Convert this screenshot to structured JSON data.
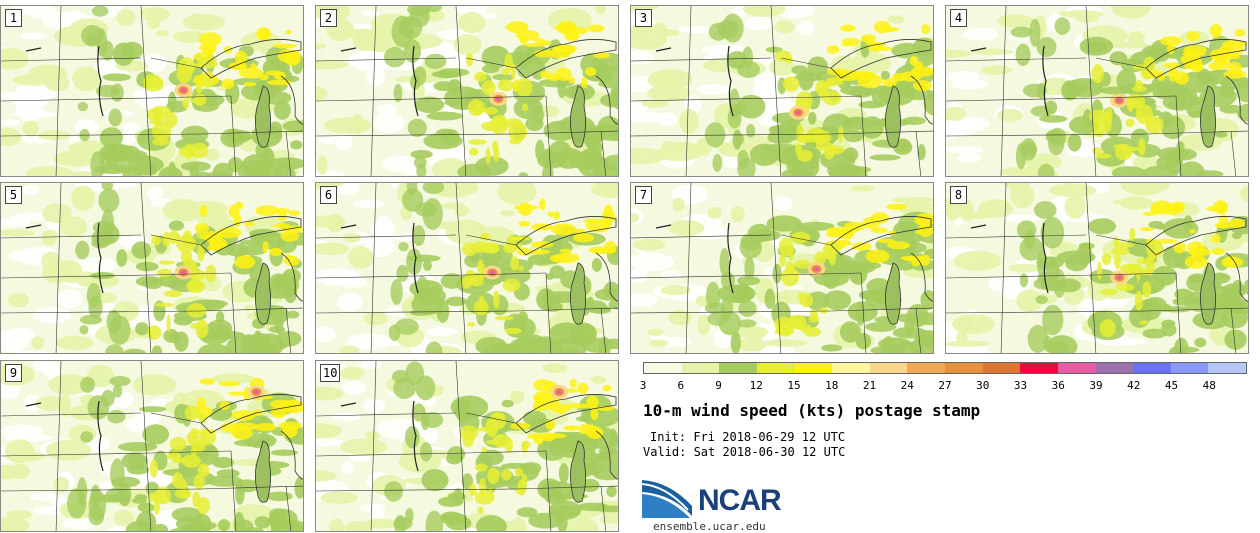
{
  "panels": [
    {
      "label": "1",
      "hot": [
        0.6,
        0.49
      ]
    },
    {
      "label": "2",
      "hot": [
        0.6,
        0.54
      ]
    },
    {
      "label": "3",
      "hot": [
        0.55,
        0.62
      ]
    },
    {
      "label": "4",
      "hot": [
        0.57,
        0.55
      ]
    },
    {
      "label": "5",
      "hot": [
        0.6,
        0.52
      ]
    },
    {
      "label": "6",
      "hot": [
        0.58,
        0.52
      ]
    },
    {
      "label": "7",
      "hot": [
        0.61,
        0.5
      ]
    },
    {
      "label": "8",
      "hot": [
        0.57,
        0.55
      ]
    },
    {
      "label": "9",
      "hot": [
        0.84,
        0.18
      ]
    },
    {
      "label": "10",
      "hot": [
        0.8,
        0.18
      ]
    }
  ],
  "colorbar": {
    "colors": [
      "#f7fbe3",
      "#e6f3a8",
      "#a6cc5e",
      "#e6ee34",
      "#fff213",
      "#fff59d",
      "#f8d68b",
      "#f0a855",
      "#e8913d",
      "#dd7533",
      "#ef0a3e",
      "#e85ba5",
      "#9c72b0",
      "#6c72f6",
      "#8899f7",
      "#b7c6f8"
    ],
    "ticks": [
      "3",
      "6",
      "9",
      "12",
      "15",
      "18",
      "21",
      "24",
      "27",
      "30",
      "33",
      "36",
      "39",
      "42",
      "45",
      "48"
    ]
  },
  "title": "10-m wind speed (kts) postage stamp",
  "init": "Init: Fri 2018-06-29 12 UTC",
  "valid": "Valid: Sat 2018-06-30 12 UTC",
  "logo": {
    "name": "NCAR",
    "url_text": "ensemble.ucar.edu"
  }
}
